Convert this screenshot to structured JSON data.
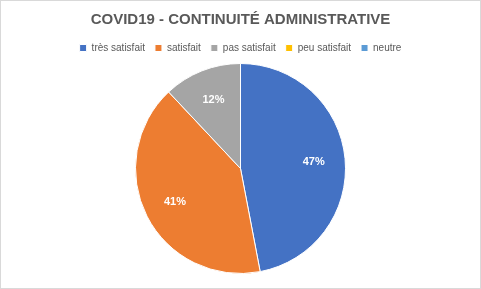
{
  "chart_data": {
    "type": "pie",
    "title": "COVID19 - CONTINUITÉ ADMINISTRATIVE",
    "categories": [
      "très satisfait",
      "satisfait",
      "pas satisfait",
      "peu satisfait",
      "neutre"
    ],
    "values": [
      47,
      41,
      12,
      0,
      0
    ],
    "value_labels": [
      "47%",
      "41%",
      "12%",
      null,
      null
    ],
    "colors": [
      "#4472c4",
      "#ed7d31",
      "#a5a5a5",
      "#ffc000",
      "#5b9bd5"
    ],
    "data_labels": true,
    "legend": "top"
  }
}
